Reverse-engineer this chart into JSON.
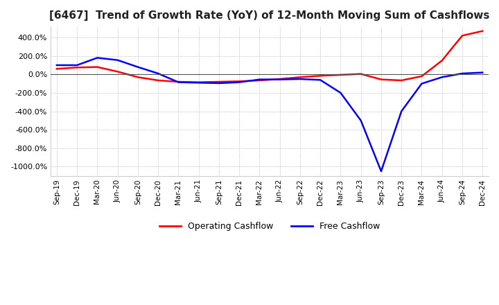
{
  "title": "[6467]  Trend of Growth Rate (YoY) of 12-Month Moving Sum of Cashflows",
  "title_fontsize": 11,
  "ylim": [
    -1100,
    520
  ],
  "yticks": [
    400,
    200,
    0,
    -200,
    -400,
    -600,
    -800,
    -1000
  ],
  "background_color": "#ffffff",
  "grid_color": "#aaaaaa",
  "operating_color": "#ff0000",
  "free_color": "#0000ff",
  "x_labels": [
    "Sep-19",
    "Dec-19",
    "Mar-20",
    "Jun-20",
    "Sep-20",
    "Dec-20",
    "Mar-21",
    "Jun-21",
    "Sep-21",
    "Dec-21",
    "Mar-22",
    "Jun-22",
    "Sep-22",
    "Dec-22",
    "Mar-23",
    "Jun-23",
    "Sep-23",
    "Dec-23",
    "Mar-24",
    "Jun-24",
    "Sep-24",
    "Dec-24"
  ],
  "operating_cashflow": [
    60,
    75,
    80,
    30,
    -30,
    -65,
    -80,
    -85,
    -80,
    -75,
    -65,
    -50,
    -30,
    -15,
    -5,
    5,
    -55,
    -65,
    -20,
    150,
    420,
    470
  ],
  "free_cashflow": [
    100,
    100,
    180,
    155,
    80,
    10,
    -85,
    -90,
    -95,
    -85,
    -55,
    -55,
    -50,
    -60,
    -200,
    -500,
    -1050,
    -400,
    -100,
    -30,
    10,
    20
  ],
  "legend_labels": [
    "Operating Cashflow",
    "Free Cashflow"
  ],
  "legend_colors": [
    "#ff0000",
    "#0000ff"
  ]
}
